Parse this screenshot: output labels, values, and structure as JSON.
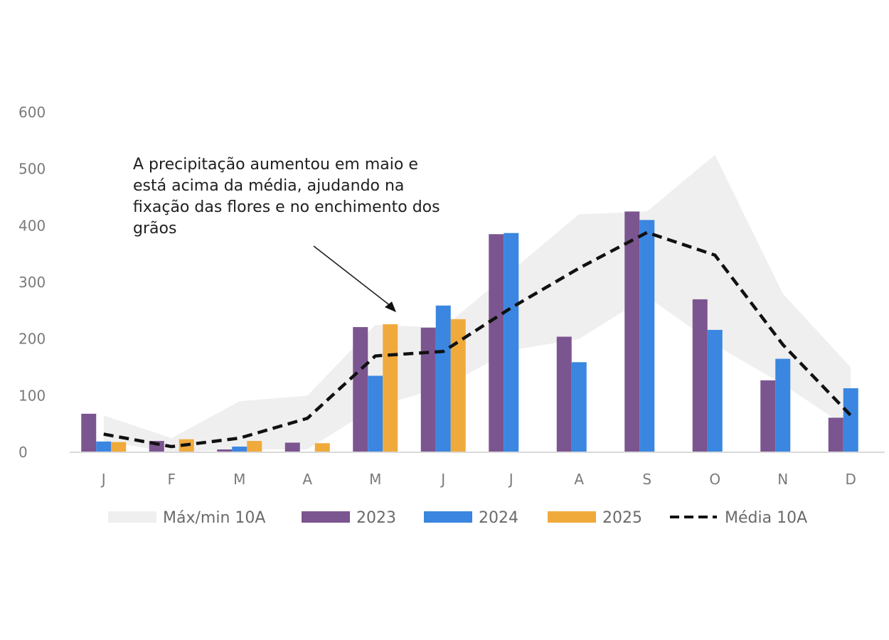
{
  "chart_data": {
    "type": "bar",
    "categories": [
      "J",
      "F",
      "M",
      "A",
      "M",
      "J",
      "J",
      "A",
      "S",
      "O",
      "N",
      "D"
    ],
    "ylim": [
      0,
      600
    ],
    "yticks": [
      0,
      100,
      200,
      300,
      400,
      500,
      600
    ],
    "grid": false,
    "legend_position": "bottom",
    "band": {
      "name": "Máx/min 10A",
      "color": "#efefef",
      "max": [
        65,
        25,
        90,
        100,
        225,
        220,
        320,
        420,
        425,
        525,
        280,
        150
      ],
      "min": [
        20,
        0,
        5,
        5,
        80,
        115,
        180,
        200,
        275,
        190,
        120,
        40
      ]
    },
    "series": [
      {
        "name": "2023",
        "color": "#7b5590",
        "values": [
          68,
          20,
          5,
          17,
          221,
          220,
          385,
          204,
          425,
          270,
          127,
          61
        ]
      },
      {
        "name": "2024",
        "color": "#3a86e0",
        "values": [
          19,
          0,
          10,
          0,
          135,
          259,
          387,
          159,
          410,
          216,
          165,
          113
        ]
      },
      {
        "name": "2025",
        "color": "#f0aa3c",
        "values": [
          18,
          23,
          20,
          16,
          226,
          235,
          null,
          null,
          null,
          null,
          null,
          null
        ]
      }
    ],
    "line": {
      "name": "Média 10A",
      "color": "#111111",
      "values": [
        32,
        10,
        25,
        60,
        170,
        178,
        255,
        325,
        388,
        348,
        190,
        65
      ]
    },
    "annotation": {
      "lines": [
        "A precipitação aumentou em maio e",
        "está acima da média, ajudando na",
        "fixação das flores e no enchimento dos",
        "grãos"
      ]
    }
  }
}
